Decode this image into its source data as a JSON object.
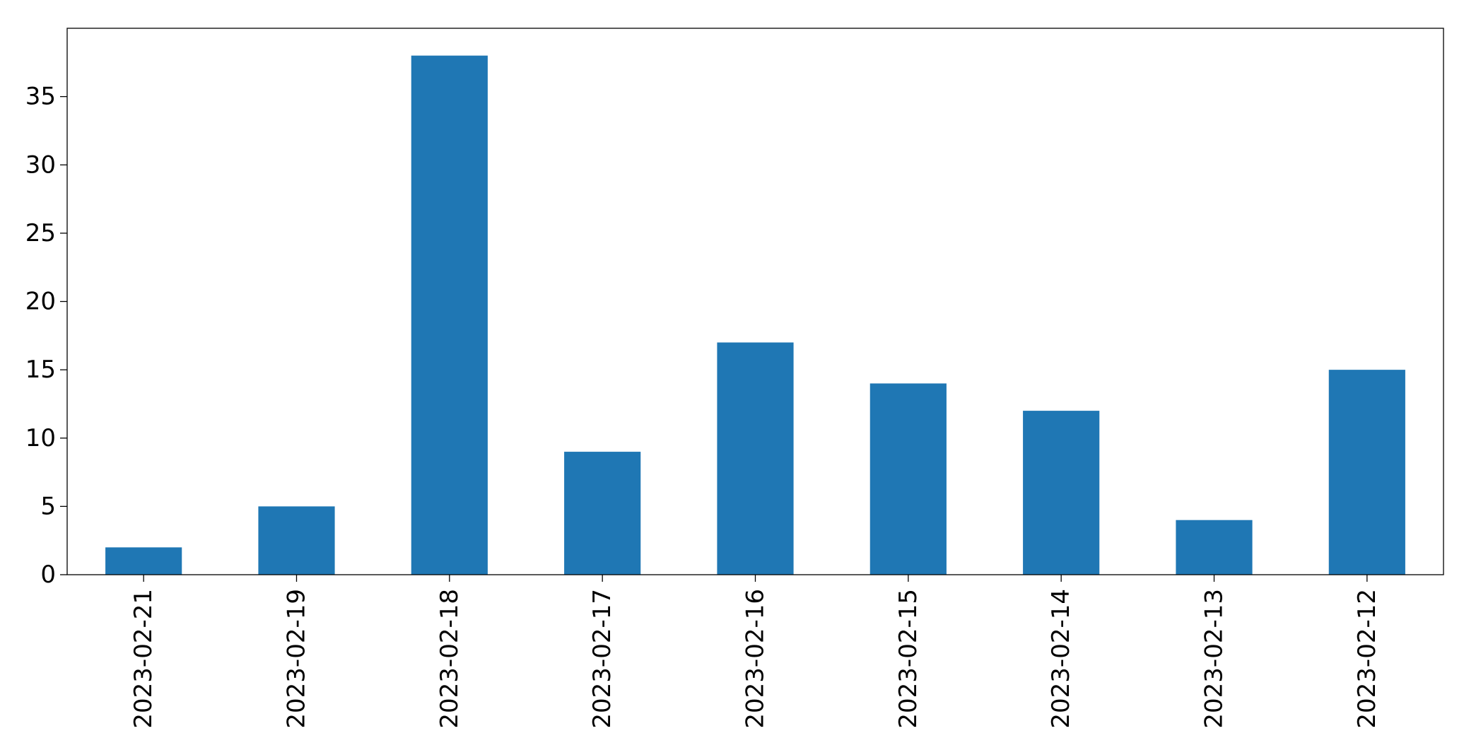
{
  "chart_data": {
    "type": "bar",
    "title": "",
    "xlabel": "",
    "ylabel": "",
    "categories": [
      "2023-02-21",
      "2023-02-19",
      "2023-02-18",
      "2023-02-17",
      "2023-02-16",
      "2023-02-15",
      "2023-02-14",
      "2023-02-13",
      "2023-02-12"
    ],
    "values": [
      2,
      5,
      38,
      9,
      17,
      14,
      12,
      4,
      15
    ],
    "ylim": [
      0,
      40
    ],
    "yticks": [
      0,
      5,
      10,
      15,
      20,
      25,
      30,
      35
    ],
    "bar_color": "#1f77b4",
    "grid": false,
    "legend": "none"
  }
}
